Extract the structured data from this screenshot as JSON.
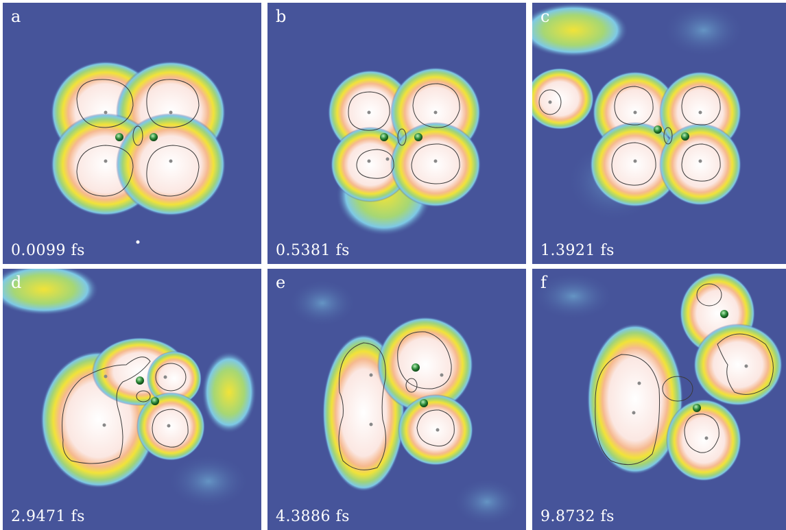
{
  "panels": [
    {
      "letter": "a",
      "time": "0.0099 fs"
    },
    {
      "letter": "b",
      "time": "0.5381 fs"
    },
    {
      "letter": "c",
      "time": "1.3921 fs"
    },
    {
      "letter": "d",
      "time": "2.9471 fs"
    },
    {
      "letter": "e",
      "time": "4.3886 fs"
    },
    {
      "letter": "f",
      "time": "9.8732 fs"
    }
  ],
  "colors": {
    "background": "#46549a",
    "halo": "#7ec9e6",
    "density_mid": "#f0e23a",
    "density_high": "#f4b183",
    "density_core": "#fdf3f0",
    "atom_c": "#2e8b3a",
    "atom_h": "#e0e0e0"
  }
}
